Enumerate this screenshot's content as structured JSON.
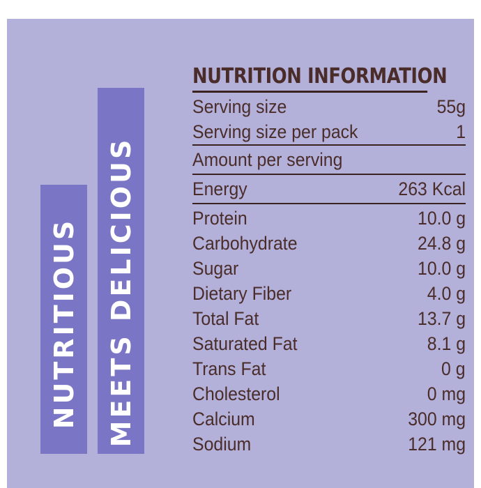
{
  "side": {
    "word1": "NUTRITIOUS",
    "word2": "MEETS DELICIOUS"
  },
  "nutrition": {
    "title": "NUTRITION INFORMATION",
    "serving": [
      {
        "label": "Serving size",
        "value": "55g"
      },
      {
        "label": "Serving size per pack",
        "value": "1"
      }
    ],
    "amount_label": "Amount per serving",
    "energy": {
      "label": "Energy",
      "value": "263 Kcal"
    },
    "nutrients": [
      {
        "label": "Protein",
        "value": "10.0 g"
      },
      {
        "label": "Carbohydrate",
        "value": "24.8 g"
      },
      {
        "label": "Sugar",
        "value": "10.0 g"
      },
      {
        "label": "Dietary Fiber",
        "value": "4.0 g"
      },
      {
        "label": "Total Fat",
        "value": "13.7 g"
      },
      {
        "label": "Saturated Fat",
        "value": "8.1 g"
      },
      {
        "label": "Trans Fat",
        "value": "0 g"
      },
      {
        "label": "Cholesterol",
        "value": "0 mg"
      },
      {
        "label": "Calcium",
        "value": "300 mg"
      },
      {
        "label": "Sodium",
        "value": "121 mg"
      }
    ],
    "colors": {
      "panel_bg": "#b3b0d9",
      "bar_bg": "#7a76c5",
      "text": "#4a2d2a"
    }
  }
}
